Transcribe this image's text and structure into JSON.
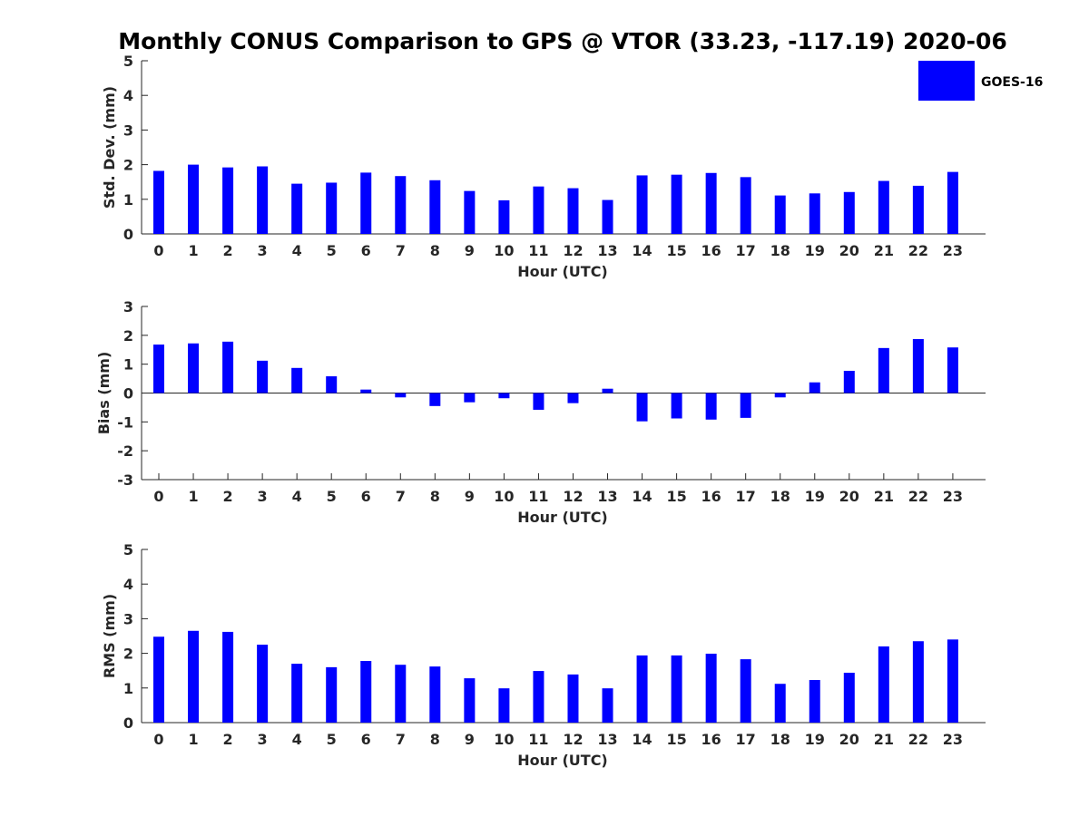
{
  "title": "Monthly CONUS Comparison to GPS @ VTOR (33.23, -117.19) 2020-06",
  "legend": {
    "label": "GOES-16",
    "color": "#0000ff",
    "placement": "top-right"
  },
  "chart_data": [
    {
      "type": "bar",
      "title": "Monthly CONUS Comparison to GPS @ VTOR (33.23, -117.19) 2020-06",
      "xlabel": "Hour (UTC)",
      "ylabel": "Std. Dev. (mm)",
      "ylim": [
        0,
        5
      ],
      "yticks": [
        0,
        1,
        2,
        3,
        4,
        5
      ],
      "grid": false,
      "categories": [
        "0",
        "1",
        "2",
        "3",
        "4",
        "5",
        "6",
        "7",
        "8",
        "9",
        "10",
        "11",
        "12",
        "13",
        "14",
        "15",
        "16",
        "17",
        "18",
        "19",
        "20",
        "21",
        "22",
        "23"
      ],
      "series": [
        {
          "name": "GOES-16",
          "color": "#0000ff",
          "values": [
            1.82,
            2.0,
            1.92,
            1.95,
            1.45,
            1.48,
            1.77,
            1.67,
            1.55,
            1.24,
            0.97,
            1.37,
            1.32,
            0.98,
            1.69,
            1.71,
            1.76,
            1.64,
            1.11,
            1.17,
            1.21,
            1.53,
            1.39,
            1.79
          ]
        }
      ]
    },
    {
      "type": "bar",
      "xlabel": "Hour (UTC)",
      "ylabel": "Bias (mm)",
      "ylim": [
        -3,
        3
      ],
      "yticks": [
        -3,
        -2,
        -1,
        0,
        1,
        2,
        3
      ],
      "grid": false,
      "categories": [
        "0",
        "1",
        "2",
        "3",
        "4",
        "5",
        "6",
        "7",
        "8",
        "9",
        "10",
        "11",
        "12",
        "13",
        "14",
        "15",
        "16",
        "17",
        "18",
        "19",
        "20",
        "21",
        "22",
        "23"
      ],
      "series": [
        {
          "name": "GOES-16",
          "color": "#0000ff",
          "values": [
            1.68,
            1.72,
            1.78,
            1.12,
            0.87,
            0.58,
            0.12,
            -0.15,
            -0.45,
            -0.32,
            -0.18,
            -0.58,
            -0.35,
            0.15,
            -0.98,
            -0.88,
            -0.92,
            -0.86,
            -0.15,
            0.37,
            0.77,
            1.56,
            1.87,
            1.58
          ]
        }
      ]
    },
    {
      "type": "bar",
      "xlabel": "Hour (UTC)",
      "ylabel": "RMS (mm)",
      "ylim": [
        0,
        5
      ],
      "yticks": [
        0,
        1,
        2,
        3,
        4,
        5
      ],
      "grid": false,
      "categories": [
        "0",
        "1",
        "2",
        "3",
        "4",
        "5",
        "6",
        "7",
        "8",
        "9",
        "10",
        "11",
        "12",
        "13",
        "14",
        "15",
        "16",
        "17",
        "18",
        "19",
        "20",
        "21",
        "22",
        "23"
      ],
      "series": [
        {
          "name": "GOES-16",
          "color": "#0000ff",
          "values": [
            2.48,
            2.65,
            2.62,
            2.25,
            1.7,
            1.6,
            1.78,
            1.67,
            1.62,
            1.28,
            0.99,
            1.49,
            1.39,
            0.99,
            1.94,
            1.94,
            1.99,
            1.83,
            1.12,
            1.23,
            1.44,
            2.2,
            2.35,
            2.4
          ]
        }
      ]
    }
  ]
}
